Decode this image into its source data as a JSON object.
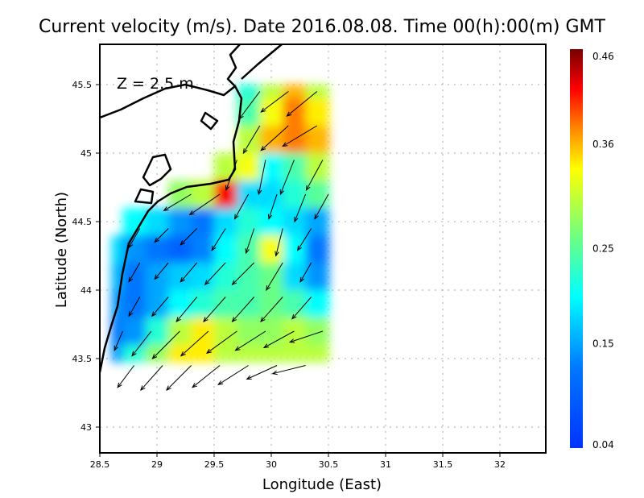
{
  "chart_data": {
    "type": "heatmap",
    "title": "Current velocity (m/s). Date 2016.08.08. Time 00(h):00(m) GMT",
    "annotation": "Z = 2.5 m",
    "xlabel": "Longitude (East)",
    "ylabel": "Latitude (North)",
    "xlim": [
      28.5,
      32.4
    ],
    "ylim": [
      42.8,
      45.8
    ],
    "xticks": [
      "28.5",
      "29",
      "29.5",
      "30",
      "30.5",
      "31",
      "31.5",
      "32"
    ],
    "yticks": [
      "43",
      "43.5",
      "44",
      "44.5",
      "45",
      "45.5"
    ],
    "grid": true,
    "colorbar": {
      "min": 0.04,
      "max": 0.46,
      "ticks": [
        "0.04",
        "0.15",
        "0.25",
        "0.36",
        "0.46"
      ],
      "colormap": "jet"
    },
    "grid_lon": [
      28.6,
      28.8,
      29.0,
      29.2,
      29.4,
      29.6,
      29.8,
      30.0,
      30.2,
      30.4
    ],
    "grid_lat": [
      45.5,
      45.3,
      45.1,
      44.9,
      44.7,
      44.5,
      44.3,
      44.1,
      43.9,
      43.7,
      43.5
    ],
    "speed": [
      [
        null,
        null,
        null,
        null,
        null,
        null,
        0.22,
        0.3,
        0.36,
        0.3
      ],
      [
        null,
        null,
        null,
        null,
        null,
        null,
        0.24,
        0.33,
        0.38,
        0.34
      ],
      [
        null,
        null,
        null,
        null,
        null,
        null,
        0.3,
        0.36,
        0.38,
        0.36
      ],
      [
        null,
        null,
        null,
        null,
        null,
        0.3,
        0.33,
        0.2,
        0.24,
        0.3
      ],
      [
        null,
        null,
        null,
        0.28,
        0.3,
        0.42,
        0.18,
        0.18,
        0.22,
        0.25
      ],
      [
        null,
        0.2,
        0.18,
        0.14,
        0.12,
        0.18,
        0.22,
        0.2,
        0.18,
        0.15
      ],
      [
        0.18,
        0.14,
        0.12,
        0.1,
        0.13,
        0.2,
        0.24,
        0.33,
        0.2,
        0.12
      ],
      [
        0.16,
        0.12,
        0.15,
        0.17,
        0.18,
        0.22,
        0.24,
        0.26,
        0.18,
        0.14
      ],
      [
        0.14,
        0.12,
        0.15,
        0.2,
        0.22,
        0.24,
        0.24,
        0.26,
        0.24,
        0.2
      ],
      [
        0.12,
        0.14,
        0.22,
        0.3,
        0.34,
        0.3,
        0.28,
        0.28,
        0.3,
        0.28
      ],
      [
        0.14,
        0.22,
        0.28,
        0.34,
        0.34,
        0.3,
        0.3,
        0.3,
        0.3,
        0.3
      ]
    ],
    "vectors": [
      [
        29.9,
        45.45,
        -0.15,
        -0.2
      ],
      [
        30.15,
        45.45,
        -0.2,
        -0.15
      ],
      [
        30.4,
        45.45,
        -0.22,
        -0.18
      ],
      [
        29.9,
        45.2,
        -0.12,
        -0.2
      ],
      [
        30.15,
        45.2,
        -0.2,
        -0.18
      ],
      [
        30.4,
        45.2,
        -0.25,
        -0.15
      ],
      [
        29.7,
        44.95,
        -0.08,
        -0.22
      ],
      [
        29.95,
        44.95,
        -0.05,
        -0.25
      ],
      [
        30.2,
        44.95,
        -0.1,
        -0.25
      ],
      [
        30.45,
        44.95,
        -0.12,
        -0.22
      ],
      [
        29.3,
        44.7,
        -0.2,
        -0.12
      ],
      [
        29.55,
        44.7,
        -0.22,
        -0.15
      ],
      [
        29.8,
        44.7,
        -0.1,
        -0.18
      ],
      [
        30.05,
        44.7,
        -0.06,
        -0.18
      ],
      [
        30.3,
        44.7,
        -0.08,
        -0.2
      ],
      [
        30.5,
        44.7,
        -0.1,
        -0.18
      ],
      [
        28.85,
        44.45,
        -0.08,
        -0.14
      ],
      [
        29.1,
        44.45,
        -0.1,
        -0.1
      ],
      [
        29.35,
        44.45,
        -0.12,
        -0.12
      ],
      [
        29.6,
        44.45,
        -0.1,
        -0.16
      ],
      [
        29.85,
        44.45,
        -0.06,
        -0.18
      ],
      [
        30.1,
        44.45,
        -0.05,
        -0.2
      ],
      [
        30.35,
        44.45,
        -0.1,
        -0.16
      ],
      [
        28.85,
        44.2,
        -0.08,
        -0.14
      ],
      [
        29.1,
        44.2,
        -0.1,
        -0.12
      ],
      [
        29.35,
        44.2,
        -0.12,
        -0.14
      ],
      [
        29.6,
        44.2,
        -0.15,
        -0.16
      ],
      [
        29.85,
        44.2,
        -0.16,
        -0.16
      ],
      [
        30.1,
        44.2,
        -0.12,
        -0.2
      ],
      [
        30.35,
        44.2,
        -0.08,
        -0.14
      ],
      [
        28.85,
        43.95,
        -0.08,
        -0.14
      ],
      [
        29.1,
        43.95,
        -0.12,
        -0.14
      ],
      [
        29.35,
        43.95,
        -0.15,
        -0.18
      ],
      [
        29.6,
        43.95,
        -0.16,
        -0.18
      ],
      [
        29.85,
        43.95,
        -0.16,
        -0.18
      ],
      [
        30.1,
        43.95,
        -0.16,
        -0.18
      ],
      [
        30.35,
        43.95,
        -0.14,
        -0.16
      ],
      [
        28.7,
        43.7,
        -0.06,
        -0.14
      ],
      [
        28.95,
        43.7,
        -0.14,
        -0.18
      ],
      [
        29.2,
        43.7,
        -0.2,
        -0.2
      ],
      [
        29.45,
        43.7,
        -0.2,
        -0.18
      ],
      [
        29.7,
        43.7,
        -0.22,
        -0.16
      ],
      [
        29.95,
        43.7,
        -0.22,
        -0.14
      ],
      [
        30.2,
        43.7,
        -0.22,
        -0.12
      ],
      [
        30.45,
        43.7,
        -0.24,
        -0.08
      ],
      [
        28.8,
        43.45,
        -0.12,
        -0.16
      ],
      [
        29.05,
        43.45,
        -0.16,
        -0.18
      ],
      [
        29.3,
        43.45,
        -0.18,
        -0.18
      ],
      [
        29.55,
        43.45,
        -0.2,
        -0.16
      ],
      [
        29.8,
        43.45,
        -0.22,
        -0.14
      ],
      [
        30.05,
        43.45,
        -0.22,
        -0.1
      ],
      [
        30.3,
        43.45,
        -0.24,
        -0.06
      ]
    ]
  }
}
